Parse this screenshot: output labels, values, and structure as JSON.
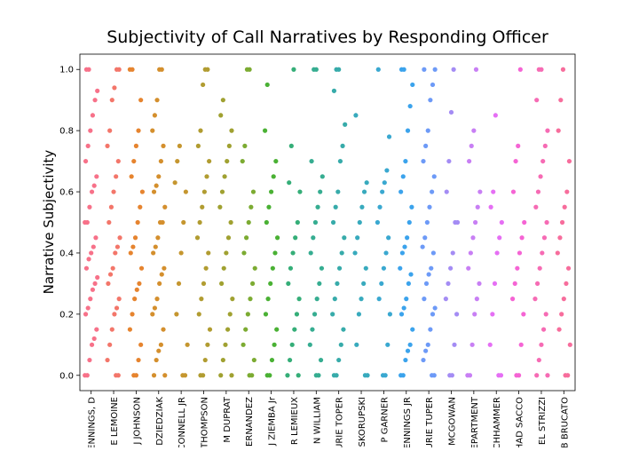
{
  "chart_data": {
    "type": "strip",
    "title": "Subjectivity of Call Narratives by Responding Officer",
    "y_label": "Narrative Subjectivity",
    "ylim": [
      -0.05,
      1.05
    ],
    "yticks": [
      {
        "value": 0,
        "label": "0.0"
      },
      {
        "value": 0.2,
        "label": "0.2"
      },
      {
        "value": 0.4,
        "label": "0.4"
      },
      {
        "value": 0.6,
        "label": "0.6"
      },
      {
        "value": 0.8,
        "label": "0.8"
      },
      {
        "value": 1,
        "label": "1.0"
      }
    ],
    "categories": [
      "ENNINGS, D",
      "E LEMOINE",
      "J JOHNSON",
      "DZIEDZIAK",
      "CONNELL JR",
      "THOMPSON",
      "M DUPRAT",
      "ERNANDEZ",
      "J ZIEMBA Jr",
      "R LEMIEUX",
      "N WILLIAM",
      "URIE TOPER",
      "SKORUPSKI",
      "P GARNER",
      "ENNINGS JR",
      "URIE TUPER",
      "MCGOWAN",
      "EPARTMENT",
      "CHHAMMER",
      "HAD SACCO",
      "EL STRIZZI",
      "B BRUCATO"
    ],
    "colors": [
      "#f77189",
      "#f3766a",
      "#e6842f",
      "#d48f2d",
      "#c5962f",
      "#b19c31",
      "#a0a131",
      "#7cab32",
      "#4ab134",
      "#35ae78",
      "#36ad91",
      "#37abaa",
      "#38aabd",
      "#3aa8d0",
      "#3ba3ec",
      "#6d9af7",
      "#a48cf4",
      "#c87ff4",
      "#e56ff4",
      "#f564d4",
      "#f66bb4",
      "#f76d9c"
    ],
    "values": [
      [
        0,
        0,
        0.05,
        0.1,
        0.12,
        0.15,
        0.2,
        0.22,
        0.25,
        0.28,
        0.3,
        0.32,
        0.35,
        0.38,
        0.4,
        0.42,
        0.45,
        0.5,
        0.5,
        0.55,
        0.6,
        0.62,
        0.65,
        0.7,
        0.75,
        0.8,
        0.85,
        0.9,
        0.93,
        1,
        1
      ],
      [
        0,
        0,
        0.05,
        0.1,
        0.15,
        0.2,
        0.22,
        0.25,
        0.3,
        0.33,
        0.35,
        0.4,
        0.42,
        0.45,
        0.5,
        0.55,
        0.6,
        0.65,
        0.7,
        0.75,
        0.8,
        0.9,
        0.94,
        1,
        1
      ],
      [
        0,
        0,
        0.05,
        0.1,
        0.15,
        0.2,
        0.25,
        0.28,
        0.3,
        0.35,
        0.4,
        0.42,
        0.45,
        0.5,
        0.55,
        0.6,
        0.65,
        0.7,
        0.75,
        0.8,
        0.9,
        1,
        1
      ],
      [
        0,
        0,
        0.05,
        0.08,
        0.1,
        0.15,
        0.2,
        0.22,
        0.25,
        0.3,
        0.33,
        0.35,
        0.4,
        0.42,
        0.45,
        0.5,
        0.5,
        0.55,
        0.6,
        0.62,
        0.65,
        0.7,
        0.75,
        0.8,
        0.85,
        0.9,
        1,
        1
      ],
      [
        0,
        0,
        0.1,
        0.2,
        0.3,
        0.4,
        0.5,
        0.6,
        0.63,
        0.7,
        0.75
      ],
      [
        0,
        0,
        0.05,
        0.1,
        0.15,
        0.2,
        0.25,
        0.3,
        0.35,
        0.4,
        0.45,
        0.5,
        0.55,
        0.6,
        0.65,
        0.7,
        0.75,
        0.8,
        0.95,
        1,
        1
      ],
      [
        0,
        0,
        0.05,
        0.1,
        0.15,
        0.2,
        0.25,
        0.3,
        0.35,
        0.4,
        0.45,
        0.5,
        0.55,
        0.6,
        0.65,
        0.7,
        0.75,
        0.8,
        0.85,
        0.9
      ],
      [
        0,
        0,
        0.05,
        0.1,
        0.15,
        0.2,
        0.25,
        0.3,
        0.35,
        0.4,
        0.45,
        0.5,
        0.55,
        0.6,
        0.7,
        0.75,
        1,
        1
      ],
      [
        0,
        0,
        0.05,
        0.1,
        0.15,
        0.2,
        0.25,
        0.3,
        0.35,
        0.4,
        0.45,
        0.5,
        0.55,
        0.6,
        0.65,
        0.7,
        0.8,
        0.95
      ],
      [
        0,
        0,
        0.05,
        0.1,
        0.15,
        0.2,
        0.25,
        0.3,
        0.35,
        0.4,
        0.45,
        0.5,
        0.6,
        0.63,
        0.75,
        1
      ],
      [
        0,
        0,
        0.05,
        0.1,
        0.15,
        0.2,
        0.25,
        0.3,
        0.35,
        0.4,
        0.45,
        0.5,
        0.55,
        0.6,
        0.65,
        0.7,
        1,
        1
      ],
      [
        0,
        0,
        0.05,
        0.1,
        0.15,
        0.2,
        0.25,
        0.3,
        0.35,
        0.4,
        0.45,
        0.5,
        0.55,
        0.6,
        0.7,
        0.75,
        0.82,
        0.93,
        1,
        1
      ],
      [
        0,
        0,
        0.1,
        0.2,
        0.25,
        0.3,
        0.35,
        0.4,
        0.45,
        0.5,
        0.55,
        0.6,
        0.63,
        0.85
      ],
      [
        0,
        0,
        0.1,
        0.2,
        0.25,
        0.3,
        0.35,
        0.4,
        0.45,
        0.5,
        0.55,
        0.6,
        0.63,
        0.67,
        0.78,
        1
      ],
      [
        0,
        0,
        0.05,
        0.08,
        0.1,
        0.15,
        0.2,
        0.22,
        0.25,
        0.3,
        0.33,
        0.35,
        0.4,
        0.42,
        0.45,
        0.5,
        0.55,
        0.6,
        0.65,
        0.7,
        0.8,
        0.88,
        0.95,
        1,
        1
      ],
      [
        0,
        0,
        0.05,
        0.08,
        0.1,
        0.15,
        0.2,
        0.22,
        0.25,
        0.3,
        0.33,
        0.35,
        0.4,
        0.42,
        0.45,
        0.5,
        0.55,
        0.6,
        0.65,
        0.7,
        0.75,
        0.8,
        0.9,
        0.95,
        1,
        1
      ],
      [
        0,
        0,
        0.1,
        0.2,
        0.25,
        0.3,
        0.35,
        0.4,
        0.5,
        0.5,
        0.6,
        0.7,
        0.86,
        1
      ],
      [
        0,
        0,
        0.1,
        0.2,
        0.25,
        0.3,
        0.35,
        0.4,
        0.45,
        0.5,
        0.55,
        0.6,
        0.7,
        0.75,
        0.8,
        1
      ],
      [
        0,
        0,
        0.1,
        0.2,
        0.3,
        0.4,
        0.45,
        0.5,
        0.55,
        0.6,
        0.85
      ],
      [
        0,
        0,
        0.1,
        0.2,
        0.25,
        0.3,
        0.35,
        0.4,
        0.45,
        0.5,
        0.6,
        0.7,
        0.75,
        1
      ],
      [
        0,
        0,
        0.05,
        0.1,
        0.15,
        0.2,
        0.25,
        0.3,
        0.35,
        0.4,
        0.45,
        0.5,
        0.55,
        0.6,
        0.65,
        0.7,
        0.75,
        0.8,
        0.9,
        1,
        1
      ],
      [
        0,
        0,
        0.1,
        0.15,
        0.2,
        0.25,
        0.3,
        0.35,
        0.4,
        0.45,
        0.5,
        0.55,
        0.6,
        0.7,
        0.8,
        0.9,
        1
      ]
    ]
  }
}
